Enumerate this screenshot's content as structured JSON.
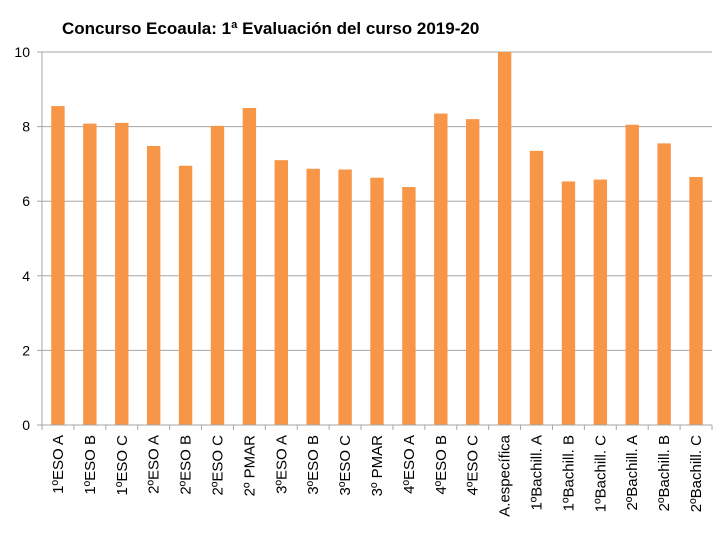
{
  "chart_data": {
    "type": "bar",
    "title": "Concurso Ecoaula: 1ª Evaluación del curso 2019-20",
    "xlabel": "",
    "ylabel": "",
    "ylim": [
      0,
      10
    ],
    "yticks": [
      "0",
      "2",
      "4",
      "6",
      "8",
      "10"
    ],
    "grid": true,
    "legend": "none",
    "bar_color": "#F79646",
    "grid_color": "#A6A6A6",
    "categories": [
      "1ºESO A",
      "1ºESO B",
      "1ºESO C",
      "2ºESO A",
      "2ºESO B",
      "2ºESO C",
      "2º PMAR",
      "3ºESO A",
      "3ºESO B",
      "3ºESO C",
      "3º PMAR",
      "4ºESO A",
      "4ºESO B",
      "4ºESO C",
      "A.específica",
      "1ºBachill. A",
      "1ºBachill. B",
      "1ºBachill. C",
      "2ºBachill. A",
      "2ºBachill. B",
      "2ºBachill. C"
    ],
    "values": [
      8.55,
      8.08,
      8.1,
      7.48,
      6.95,
      8.02,
      8.5,
      7.1,
      6.87,
      6.85,
      6.63,
      6.38,
      8.35,
      8.2,
      10.0,
      7.35,
      6.53,
      6.58,
      8.05,
      7.55,
      6.65
    ]
  }
}
